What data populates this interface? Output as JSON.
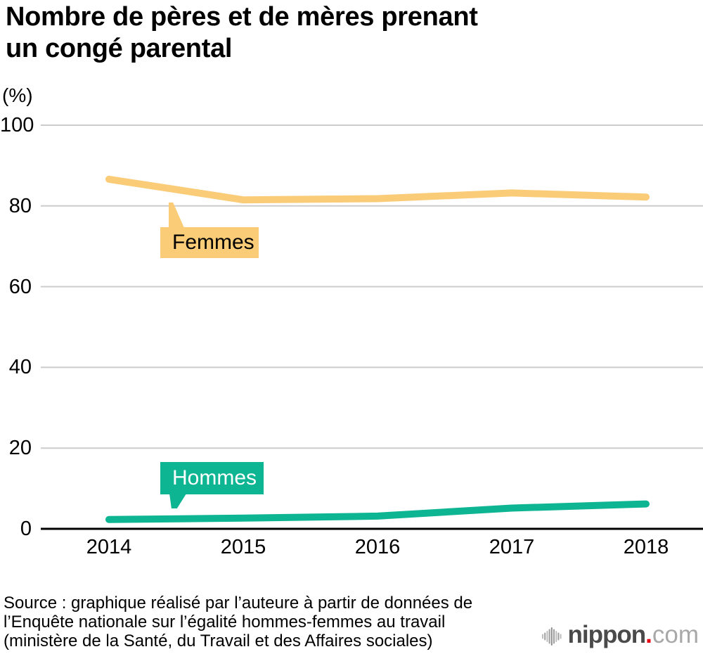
{
  "title": {
    "line1": "Nombre de pères et de mères prenant",
    "line2": "un congé parental"
  },
  "chart_data": {
    "type": "line",
    "x": [
      "2014",
      "2015",
      "2016",
      "2017",
      "2018"
    ],
    "series": [
      {
        "name": "Femmes",
        "values": [
          86.6,
          81.5,
          81.8,
          83.2,
          82.2
        ],
        "color": "#FACC78",
        "label_text_color": "#000000"
      },
      {
        "name": "Hommes",
        "values": [
          2.3,
          2.65,
          3.16,
          5.14,
          6.16
        ],
        "color": "#0EB593",
        "label_text_color": "#FFFFFF"
      }
    ],
    "ylabel_unit": "(%)",
    "ylim": [
      0,
      100
    ],
    "yticks": [
      0,
      20,
      40,
      60,
      80,
      100
    ],
    "grid": true,
    "legend": "inline-callouts"
  },
  "colors": {
    "grid_line": "#cccccc",
    "axis_line": "#000000",
    "logo_dot_red": "#E60012"
  },
  "source": {
    "line1": "Source : graphique réalisé par l’auteure à partir de données de",
    "line2": "l’Enquête nationale sur l’égalité hommes-femmes au travail",
    "line3": "(ministère de la Santé, du Travail et des Affaires sociales)"
  },
  "logo": {
    "name": "nippon",
    "dot": ".",
    "suffix": "com"
  }
}
